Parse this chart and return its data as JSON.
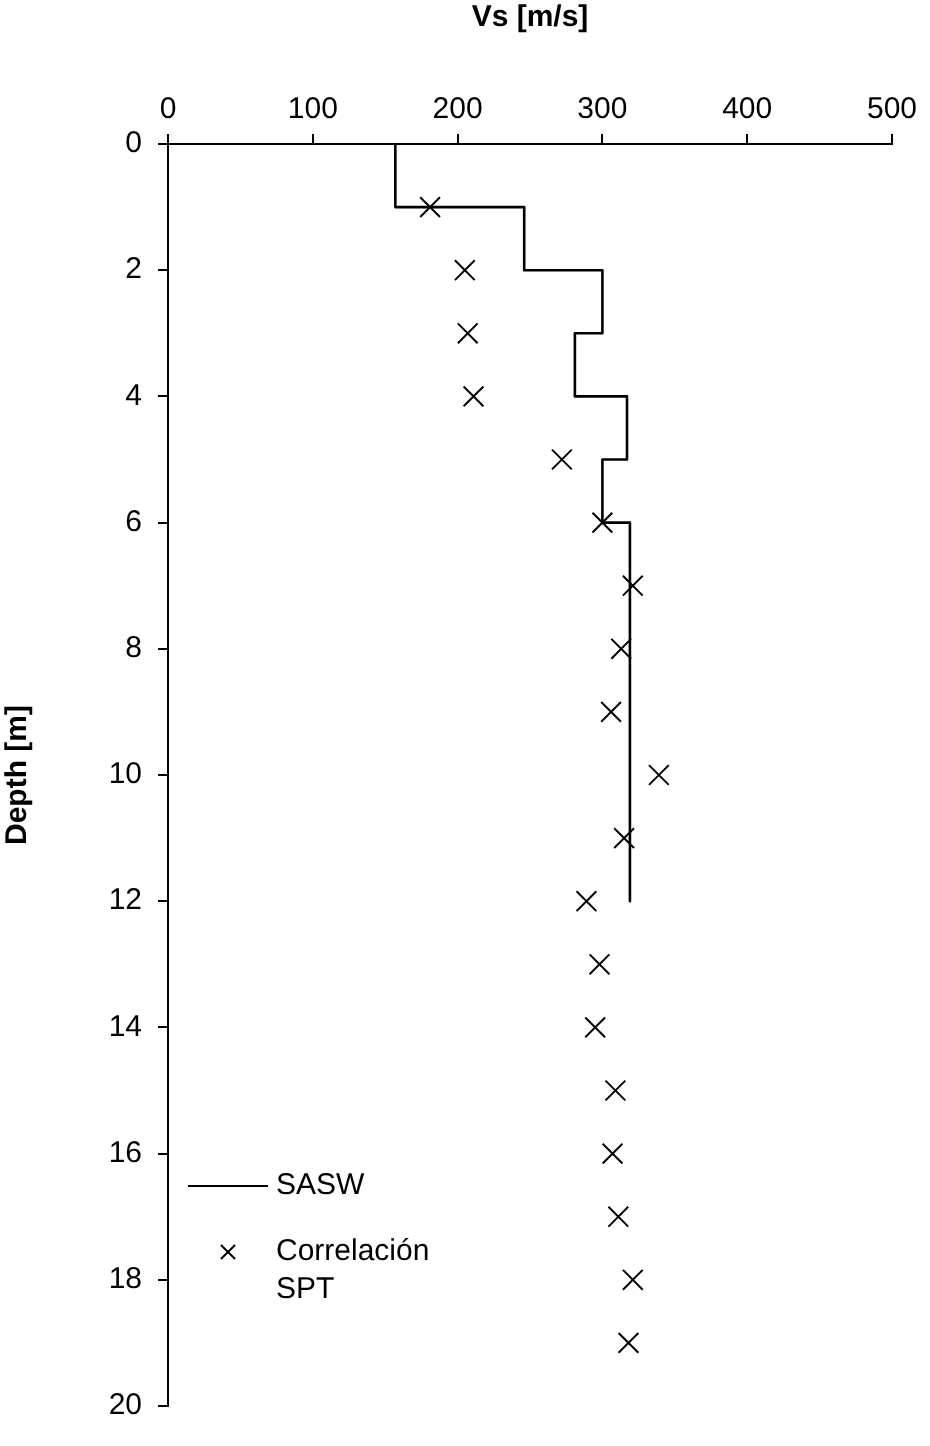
{
  "chart_data": {
    "type": "line",
    "xlabel": "Vs [m/s]",
    "ylabel": "Depth [m]",
    "xlim": [
      0,
      500
    ],
    "xticks": [
      0,
      100,
      200,
      300,
      400,
      500
    ],
    "ylim": [
      20,
      0
    ],
    "yticks": [
      0,
      2,
      4,
      6,
      8,
      10,
      12,
      14,
      16,
      18,
      20
    ],
    "grid": false,
    "legend": "bottom left",
    "series": [
      {
        "name": "SASW",
        "type": "line",
        "color": "#000000",
        "marker": "none",
        "line_style": "solid",
        "x": [
          157,
          157,
          246,
          246,
          300,
          300,
          281,
          281,
          317,
          317,
          300,
          300,
          319,
          319
        ],
        "values": [
          0,
          1,
          1,
          2,
          2,
          3,
          3,
          4,
          4,
          5,
          5,
          6,
          6,
          12
        ]
      },
      {
        "name": "Correlación SPT",
        "type": "scatter",
        "color": "#000000",
        "marker": "cross",
        "x": [
          181,
          205,
          207,
          211,
          272,
          300,
          321,
          313,
          306,
          339,
          315,
          289,
          298,
          295,
          309,
          307,
          311,
          321,
          318
        ],
        "values": [
          1,
          2,
          3,
          4,
          5,
          6,
          7,
          8,
          9,
          10,
          11,
          12,
          13,
          14,
          15,
          16,
          17,
          18,
          19
        ]
      }
    ]
  }
}
